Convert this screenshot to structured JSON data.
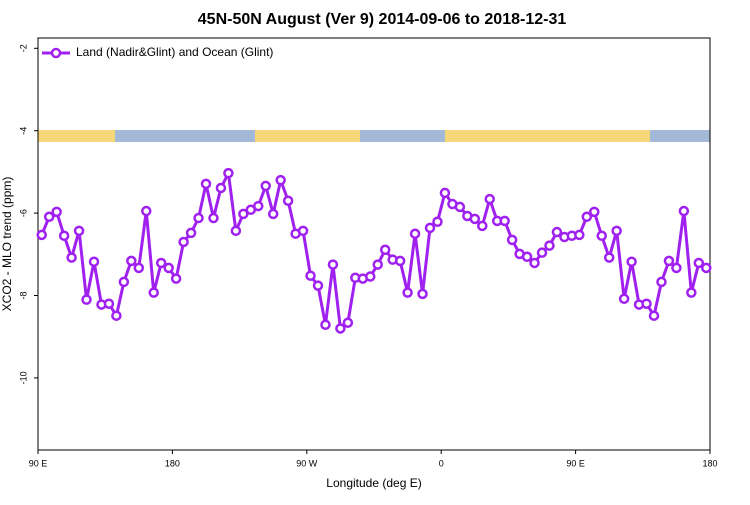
{
  "chart_data": {
    "type": "line",
    "title": "45N-50N August (Ver 9)   2014-09-06 to 2018-12-31",
    "x_label": "Longitude (deg E)",
    "y_label": "XCO2 - MLO trend (ppm)",
    "xlim": [
      90,
      540
    ],
    "xticks": [
      {
        "value": 90,
        "label": "90 E"
      },
      180,
      {
        "value": 270,
        "label": "90 W"
      },
      {
        "value": 360,
        "label": "0"
      },
      {
        "value": 450,
        "label": "90 E"
      },
      {
        "value": 540,
        "label": "180"
      }
    ],
    "ylim": [
      -11.75,
      -1.75
    ],
    "yticks": [
      -2,
      -4,
      -6,
      -8,
      -10
    ],
    "legend": "upper left",
    "x": [
      92.5,
      97.5,
      102.5,
      107.5,
      112.5,
      117.5,
      122.5,
      127.5,
      132.5,
      137.5,
      142.5,
      147.5,
      152.5,
      157.5,
      162.5,
      167.5,
      172.5,
      177.5,
      182.5,
      187.5,
      192.5,
      197.5,
      202.5,
      207.5,
      212.5,
      217.5,
      222.5,
      227.5,
      232.5,
      237.5,
      242.5,
      247.5,
      252.5,
      257.5,
      262.5,
      267.5,
      272.5,
      277.5,
      282.5,
      287.5,
      292.5,
      297.5,
      302.5,
      307.5,
      312.5,
      317.5,
      322.5,
      327.5,
      332.5,
      337.5,
      342.5,
      347.5,
      352.5,
      357.5,
      362.5,
      367.5,
      372.5,
      377.5,
      382.5,
      387.5,
      392.5,
      397.5,
      402.5,
      407.5,
      412.5,
      417.5,
      422.5,
      427.5,
      432.5,
      437.5,
      442.5,
      447.5,
      452.5,
      457.5,
      462.5,
      467.5,
      472.5,
      477.5,
      482.5,
      487.5,
      492.5,
      497.5,
      502.5,
      507.5,
      512.5,
      517.5,
      522.5,
      527.5,
      532.5,
      537.5
    ],
    "series": [
      {
        "name": "Land (Nadir&Glint) and Ocean (Glint)",
        "color": "#a020f0",
        "values": [
          -6.53,
          -6.09,
          -5.97,
          -6.55,
          -7.08,
          -6.43,
          -8.1,
          -7.18,
          -8.22,
          -8.2,
          -8.49,
          -7.67,
          -7.16,
          -7.33,
          -5.95,
          -7.93,
          -7.21,
          -7.33,
          -7.59,
          -6.7,
          -6.48,
          -6.12,
          -5.29,
          -6.12,
          -5.39,
          -5.03,
          -6.43,
          -6.02,
          -5.92,
          -5.83,
          -5.34,
          -6.02,
          -5.2,
          -5.7,
          -6.5,
          -6.43,
          -7.52,
          -7.76,
          -8.71,
          -7.25,
          -8.8,
          -8.66,
          -7.57,
          -7.59,
          -7.54,
          -7.25,
          -6.89,
          -7.13,
          -7.16,
          -7.93,
          -6.5,
          -7.96,
          -6.36,
          -6.21,
          -5.51,
          -5.78,
          -5.85,
          -6.07,
          -6.14,
          -6.31,
          -5.66,
          -6.19,
          -6.19,
          -6.65,
          -6.99,
          -7.06,
          -7.21,
          -6.96,
          -6.79,
          -6.46,
          -6.58,
          -6.55,
          -6.53,
          -6.09,
          -5.97,
          -6.55,
          -7.08,
          -6.43,
          -8.08,
          -7.18,
          -8.22,
          -8.2,
          -8.49,
          -7.67,
          -7.16,
          -7.33,
          -5.95,
          -7.93,
          -7.21,
          -7.33
        ]
      }
    ]
  }
}
